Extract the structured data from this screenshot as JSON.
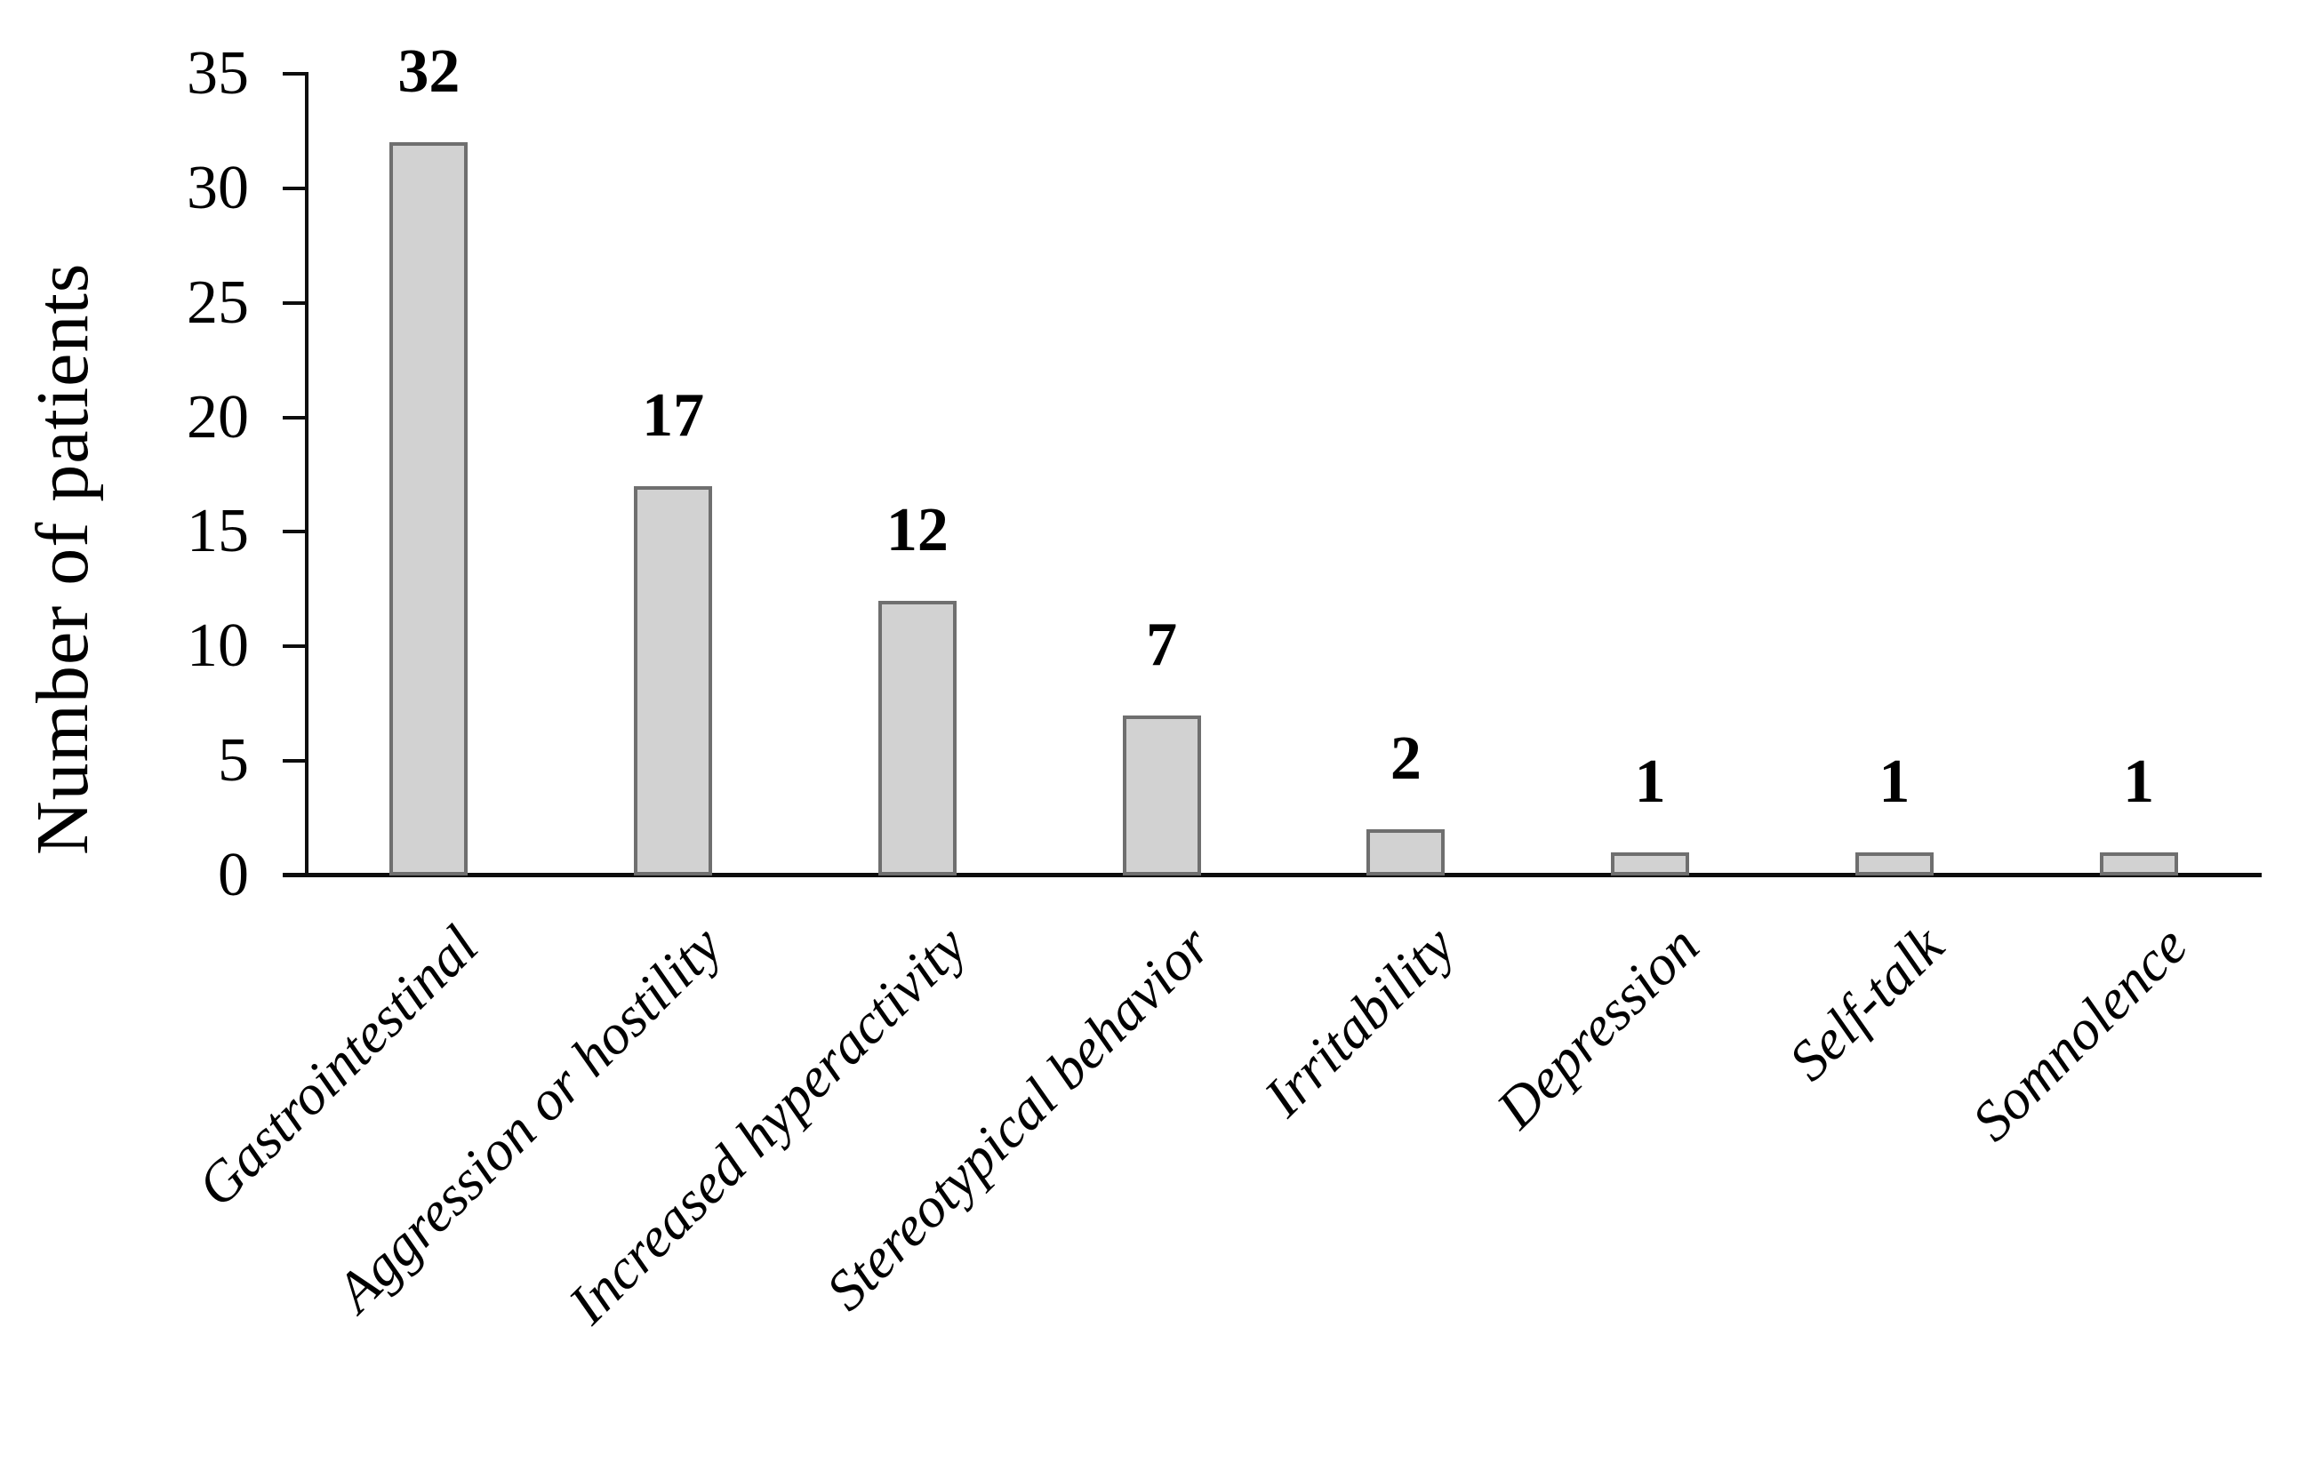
{
  "chart_data": {
    "type": "bar",
    "title": "",
    "xlabel": "",
    "ylabel": "Number of patients",
    "categories": [
      "Gastrointestinal",
      "Aggression or hostility",
      "Increased hyperactivity",
      "Stereotypical behavior",
      "Irritability",
      "Depression",
      "Self-talk",
      "Somnolence"
    ],
    "values": [
      32,
      17,
      12,
      7,
      2,
      1,
      1,
      1
    ],
    "data_labels": [
      "32",
      "17",
      "12",
      "7",
      "2",
      "1",
      "1",
      "1"
    ],
    "yticks": [
      0,
      5,
      10,
      15,
      20,
      25,
      30,
      35
    ],
    "ylim": [
      0,
      35
    ],
    "grid": "off",
    "legend": "none",
    "bar_fill_color": "#d2d2d2",
    "bar_border_color": "#6f6f6f",
    "axis_color": "#0d0d0d",
    "text_color": "#000000"
  }
}
